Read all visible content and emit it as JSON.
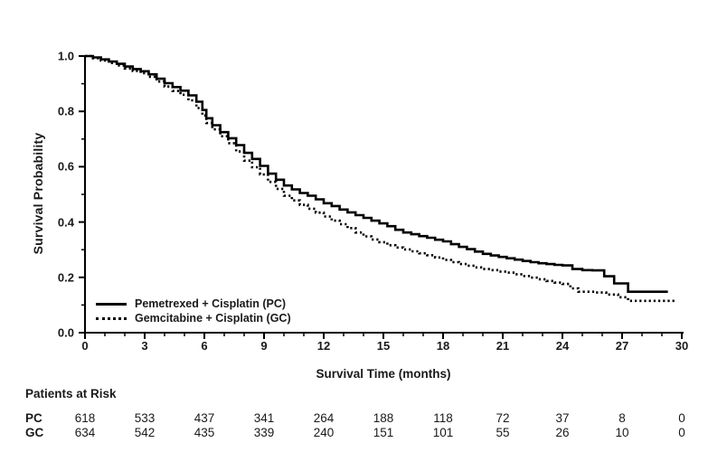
{
  "colors": {
    "line": "#000000",
    "text": "#1a1a1a",
    "background": "#ffffff"
  },
  "chart_data": {
    "type": "line",
    "subtype": "kaplan-meier-step",
    "title": "",
    "xlabel": "Survival Time (months)",
    "ylabel": "Survival Probability",
    "xlim": [
      0,
      30
    ],
    "ylim": [
      0.0,
      1.0
    ],
    "x_major_ticks": [
      0,
      3,
      6,
      9,
      12,
      15,
      18,
      21,
      24,
      27,
      30
    ],
    "x_minor_step": 1,
    "y_major_ticks": [
      0.0,
      0.2,
      0.4,
      0.6,
      0.8,
      1.0
    ],
    "y_minor_step": 0.1,
    "grid": false,
    "legend_position": "inside-lower-left",
    "series": [
      {
        "name": "Pemetrexed + Cisplatin (PC)",
        "style": "solid",
        "color": "#000000",
        "points": [
          [
            0,
            1.0
          ],
          [
            0.4,
            0.995
          ],
          [
            0.8,
            0.988
          ],
          [
            1.2,
            0.98
          ],
          [
            1.6,
            0.972
          ],
          [
            2,
            0.962
          ],
          [
            2.4,
            0.953
          ],
          [
            2.8,
            0.945
          ],
          [
            3.2,
            0.934
          ],
          [
            3.6,
            0.918
          ],
          [
            4,
            0.902
          ],
          [
            4.4,
            0.888
          ],
          [
            4.8,
            0.875
          ],
          [
            5.2,
            0.858
          ],
          [
            5.6,
            0.835
          ],
          [
            5.9,
            0.805
          ],
          [
            6.1,
            0.775
          ],
          [
            6.4,
            0.75
          ],
          [
            6.8,
            0.725
          ],
          [
            7.2,
            0.703
          ],
          [
            7.6,
            0.678
          ],
          [
            8,
            0.65
          ],
          [
            8.4,
            0.628
          ],
          [
            8.8,
            0.603
          ],
          [
            9.2,
            0.575
          ],
          [
            9.6,
            0.553
          ],
          [
            10,
            0.532
          ],
          [
            10.4,
            0.518
          ],
          [
            10.8,
            0.505
          ],
          [
            11.2,
            0.495
          ],
          [
            11.6,
            0.482
          ],
          [
            12,
            0.468
          ],
          [
            12.4,
            0.458
          ],
          [
            12.8,
            0.445
          ],
          [
            13.2,
            0.435
          ],
          [
            13.6,
            0.425
          ],
          [
            14,
            0.415
          ],
          [
            14.4,
            0.405
          ],
          [
            14.8,
            0.395
          ],
          [
            15.2,
            0.385
          ],
          [
            15.6,
            0.372
          ],
          [
            16,
            0.362
          ],
          [
            16.4,
            0.356
          ],
          [
            16.8,
            0.349
          ],
          [
            17.2,
            0.343
          ],
          [
            17.6,
            0.336
          ],
          [
            18,
            0.33
          ],
          [
            18.4,
            0.32
          ],
          [
            18.8,
            0.31
          ],
          [
            19.2,
            0.302
          ],
          [
            19.6,
            0.293
          ],
          [
            20,
            0.285
          ],
          [
            20.4,
            0.279
          ],
          [
            20.8,
            0.274
          ],
          [
            21.2,
            0.269
          ],
          [
            21.6,
            0.264
          ],
          [
            22,
            0.259
          ],
          [
            22.4,
            0.255
          ],
          [
            22.8,
            0.251
          ],
          [
            23.2,
            0.248
          ],
          [
            23.6,
            0.245
          ],
          [
            24,
            0.243
          ],
          [
            24.5,
            0.23
          ],
          [
            25,
            0.226
          ],
          [
            25.5,
            0.225
          ],
          [
            26.1,
            0.204
          ],
          [
            26.6,
            0.178
          ],
          [
            27.3,
            0.148
          ],
          [
            29.3,
            0.148
          ]
        ]
      },
      {
        "name": "Gemcitabine + Cisplatin (GC)",
        "style": "dotted",
        "color": "#000000",
        "points": [
          [
            0,
            1.0
          ],
          [
            0.4,
            0.992
          ],
          [
            0.8,
            0.984
          ],
          [
            1.2,
            0.975
          ],
          [
            1.6,
            0.966
          ],
          [
            2,
            0.955
          ],
          [
            2.4,
            0.946
          ],
          [
            2.8,
            0.938
          ],
          [
            3.2,
            0.925
          ],
          [
            3.6,
            0.908
          ],
          [
            4,
            0.89
          ],
          [
            4.4,
            0.874
          ],
          [
            4.8,
            0.86
          ],
          [
            5.2,
            0.84
          ],
          [
            5.6,
            0.812
          ],
          [
            5.9,
            0.785
          ],
          [
            6.1,
            0.758
          ],
          [
            6.4,
            0.735
          ],
          [
            6.8,
            0.71
          ],
          [
            7.2,
            0.685
          ],
          [
            7.6,
            0.655
          ],
          [
            8,
            0.622
          ],
          [
            8.4,
            0.598
          ],
          [
            8.8,
            0.572
          ],
          [
            9.2,
            0.545
          ],
          [
            9.6,
            0.52
          ],
          [
            10,
            0.495
          ],
          [
            10.4,
            0.478
          ],
          [
            10.8,
            0.462
          ],
          [
            11.2,
            0.448
          ],
          [
            11.6,
            0.434
          ],
          [
            12,
            0.42
          ],
          [
            12.4,
            0.405
          ],
          [
            12.8,
            0.392
          ],
          [
            13.2,
            0.378
          ],
          [
            13.6,
            0.362
          ],
          [
            14,
            0.348
          ],
          [
            14.4,
            0.337
          ],
          [
            14.8,
            0.327
          ],
          [
            15.2,
            0.316
          ],
          [
            15.6,
            0.308
          ],
          [
            16,
            0.301
          ],
          [
            16.4,
            0.294
          ],
          [
            16.8,
            0.287
          ],
          [
            17.2,
            0.28
          ],
          [
            17.6,
            0.272
          ],
          [
            18,
            0.263
          ],
          [
            18.4,
            0.255
          ],
          [
            18.8,
            0.248
          ],
          [
            19.2,
            0.242
          ],
          [
            19.6,
            0.236
          ],
          [
            20,
            0.23
          ],
          [
            20.4,
            0.226
          ],
          [
            20.8,
            0.221
          ],
          [
            21.2,
            0.217
          ],
          [
            21.6,
            0.211
          ],
          [
            22,
            0.205
          ],
          [
            22.4,
            0.199
          ],
          [
            22.8,
            0.193
          ],
          [
            23.2,
            0.187
          ],
          [
            23.6,
            0.181
          ],
          [
            24,
            0.176
          ],
          [
            24.4,
            0.16
          ],
          [
            24.8,
            0.148
          ],
          [
            25.6,
            0.145
          ],
          [
            26.2,
            0.138
          ],
          [
            26.8,
            0.128
          ],
          [
            27.3,
            0.115
          ],
          [
            29.7,
            0.112
          ]
        ]
      }
    ],
    "at_risk": {
      "title": "Patients at Risk",
      "times": [
        0,
        3,
        6,
        9,
        12,
        15,
        18,
        21,
        24,
        27,
        30
      ],
      "rows": [
        {
          "label": "PC",
          "counts": [
            618,
            533,
            437,
            341,
            264,
            188,
            118,
            72,
            37,
            8,
            0
          ]
        },
        {
          "label": "GC",
          "counts": [
            634,
            542,
            435,
            339,
            240,
            151,
            101,
            55,
            26,
            10,
            0
          ]
        }
      ]
    }
  }
}
